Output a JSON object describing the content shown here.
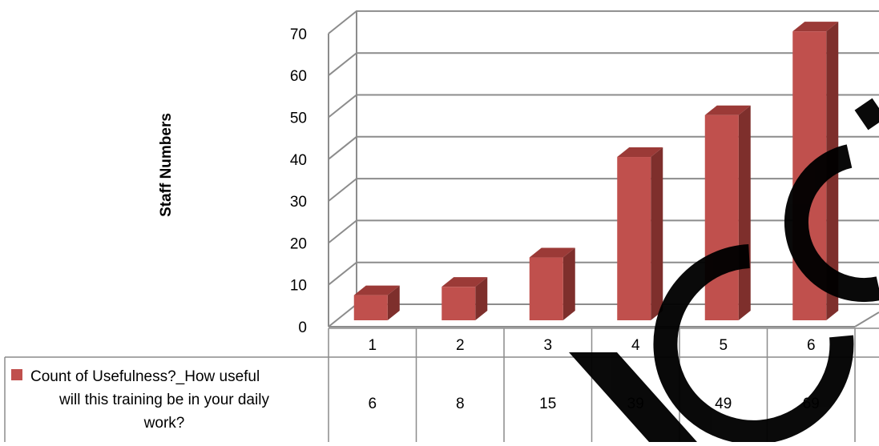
{
  "chart_data": {
    "type": "bar",
    "style": "3d-column-with-data-table",
    "categories": [
      "1",
      "2",
      "3",
      "4",
      "5",
      "6"
    ],
    "series": [
      {
        "name": "Count of Usefulness?_How useful will this training be in your daily work?",
        "legend_lines": [
          "Count of Usefulness?_How useful",
          "will this training be in your daily",
          "work?"
        ],
        "values": [
          6,
          8,
          15,
          39,
          49,
          69
        ],
        "color": "#c0504d"
      }
    ],
    "ylabel": "Staff Numbers",
    "xlabel": "",
    "ylim": [
      0,
      70
    ],
    "yticks": [
      0,
      10,
      20,
      30,
      40,
      50,
      60,
      70
    ],
    "grid": true,
    "colors": {
      "bar_front": "#c0504d",
      "bar_side": "#7e2f2c",
      "bar_top": "#9b3a37",
      "grid": "#8c8c8c",
      "table_border": "#8c8c8c"
    }
  },
  "watermark": {
    "text": "Draft Copy",
    "color": "#000000"
  }
}
